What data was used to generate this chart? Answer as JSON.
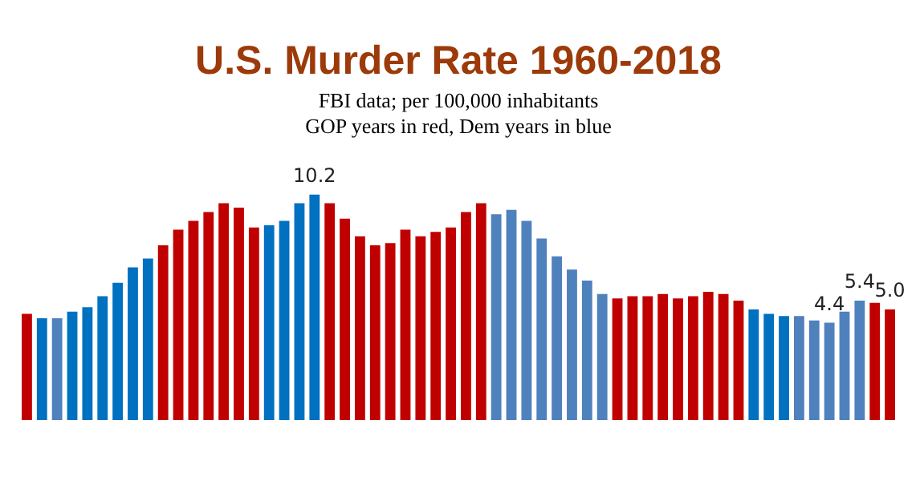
{
  "chart_data": {
    "type": "bar",
    "title": "U.S. Murder Rate 1960-2018",
    "subtitle": "FBI data; per 100,000 inhabitants\nGOP years in red, Dem years in blue",
    "categories": [
      null,
      null,
      null,
      null,
      null,
      null,
      null,
      null,
      null,
      null,
      null,
      null,
      null,
      null,
      null,
      null,
      null,
      null,
      null,
      null,
      null,
      null,
      null,
      null,
      null,
      null,
      null,
      null,
      null,
      null,
      null,
      null,
      null,
      null,
      null,
      null,
      null,
      null,
      null,
      null,
      null,
      null,
      null,
      null,
      null,
      null,
      null,
      null,
      null,
      null,
      null,
      null,
      null,
      null,
      null,
      null,
      null,
      null
    ],
    "values": [
      4.8,
      4.6,
      4.6,
      4.9,
      5.1,
      5.6,
      6.2,
      6.9,
      7.3,
      7.9,
      8.6,
      9.0,
      9.4,
      9.8,
      9.6,
      8.7,
      8.8,
      9.0,
      9.8,
      10.2,
      9.8,
      9.1,
      8.3,
      7.9,
      8.0,
      8.6,
      8.3,
      8.5,
      8.7,
      9.4,
      9.8,
      9.3,
      9.5,
      9.0,
      8.2,
      7.4,
      6.8,
      6.3,
      5.7,
      5.5,
      5.6,
      5.6,
      5.7,
      5.5,
      5.6,
      5.8,
      5.7,
      5.4,
      5.0,
      4.8,
      4.7,
      4.7,
      4.5,
      4.4,
      4.9,
      5.4,
      5.3,
      5.0
    ],
    "colors": [
      "#c00000",
      "#0070c0",
      "#4f81bd",
      "#0070c0",
      "#0070c0",
      "#0070c0",
      "#0070c0",
      "#0070c0",
      "#0070c0",
      "#c00000",
      "#c00000",
      "#c00000",
      "#c00000",
      "#c00000",
      "#c00000",
      "#c00000",
      "#0070c0",
      "#0070c0",
      "#0070c0",
      "#0070c0",
      "#c00000",
      "#c00000",
      "#c00000",
      "#c00000",
      "#c00000",
      "#c00000",
      "#c00000",
      "#c00000",
      "#c00000",
      "#c00000",
      "#c00000",
      "#4f81bd",
      "#4f81bd",
      "#4f81bd",
      "#4f81bd",
      "#4f81bd",
      "#4f81bd",
      "#4f81bd",
      "#4f81bd",
      "#c00000",
      "#c00000",
      "#c00000",
      "#c00000",
      "#c00000",
      "#c00000",
      "#c00000",
      "#c00000",
      "#c00000",
      "#0070c0",
      "#0070c0",
      "#0070c0",
      "#4f81bd",
      "#4f81bd",
      "#4f81bd",
      "#4f81bd",
      "#4f81bd",
      "#c00000",
      "#c00000"
    ],
    "value_labels": [
      null,
      null,
      null,
      null,
      null,
      null,
      null,
      null,
      null,
      null,
      null,
      null,
      null,
      null,
      null,
      null,
      null,
      null,
      null,
      "10.2",
      null,
      null,
      null,
      null,
      null,
      null,
      null,
      null,
      null,
      null,
      null,
      null,
      null,
      null,
      null,
      null,
      null,
      null,
      null,
      null,
      null,
      null,
      null,
      null,
      null,
      null,
      null,
      null,
      null,
      null,
      null,
      null,
      null,
      "4.4",
      null,
      "5.4",
      null,
      "5.0"
    ],
    "legend": false
  }
}
